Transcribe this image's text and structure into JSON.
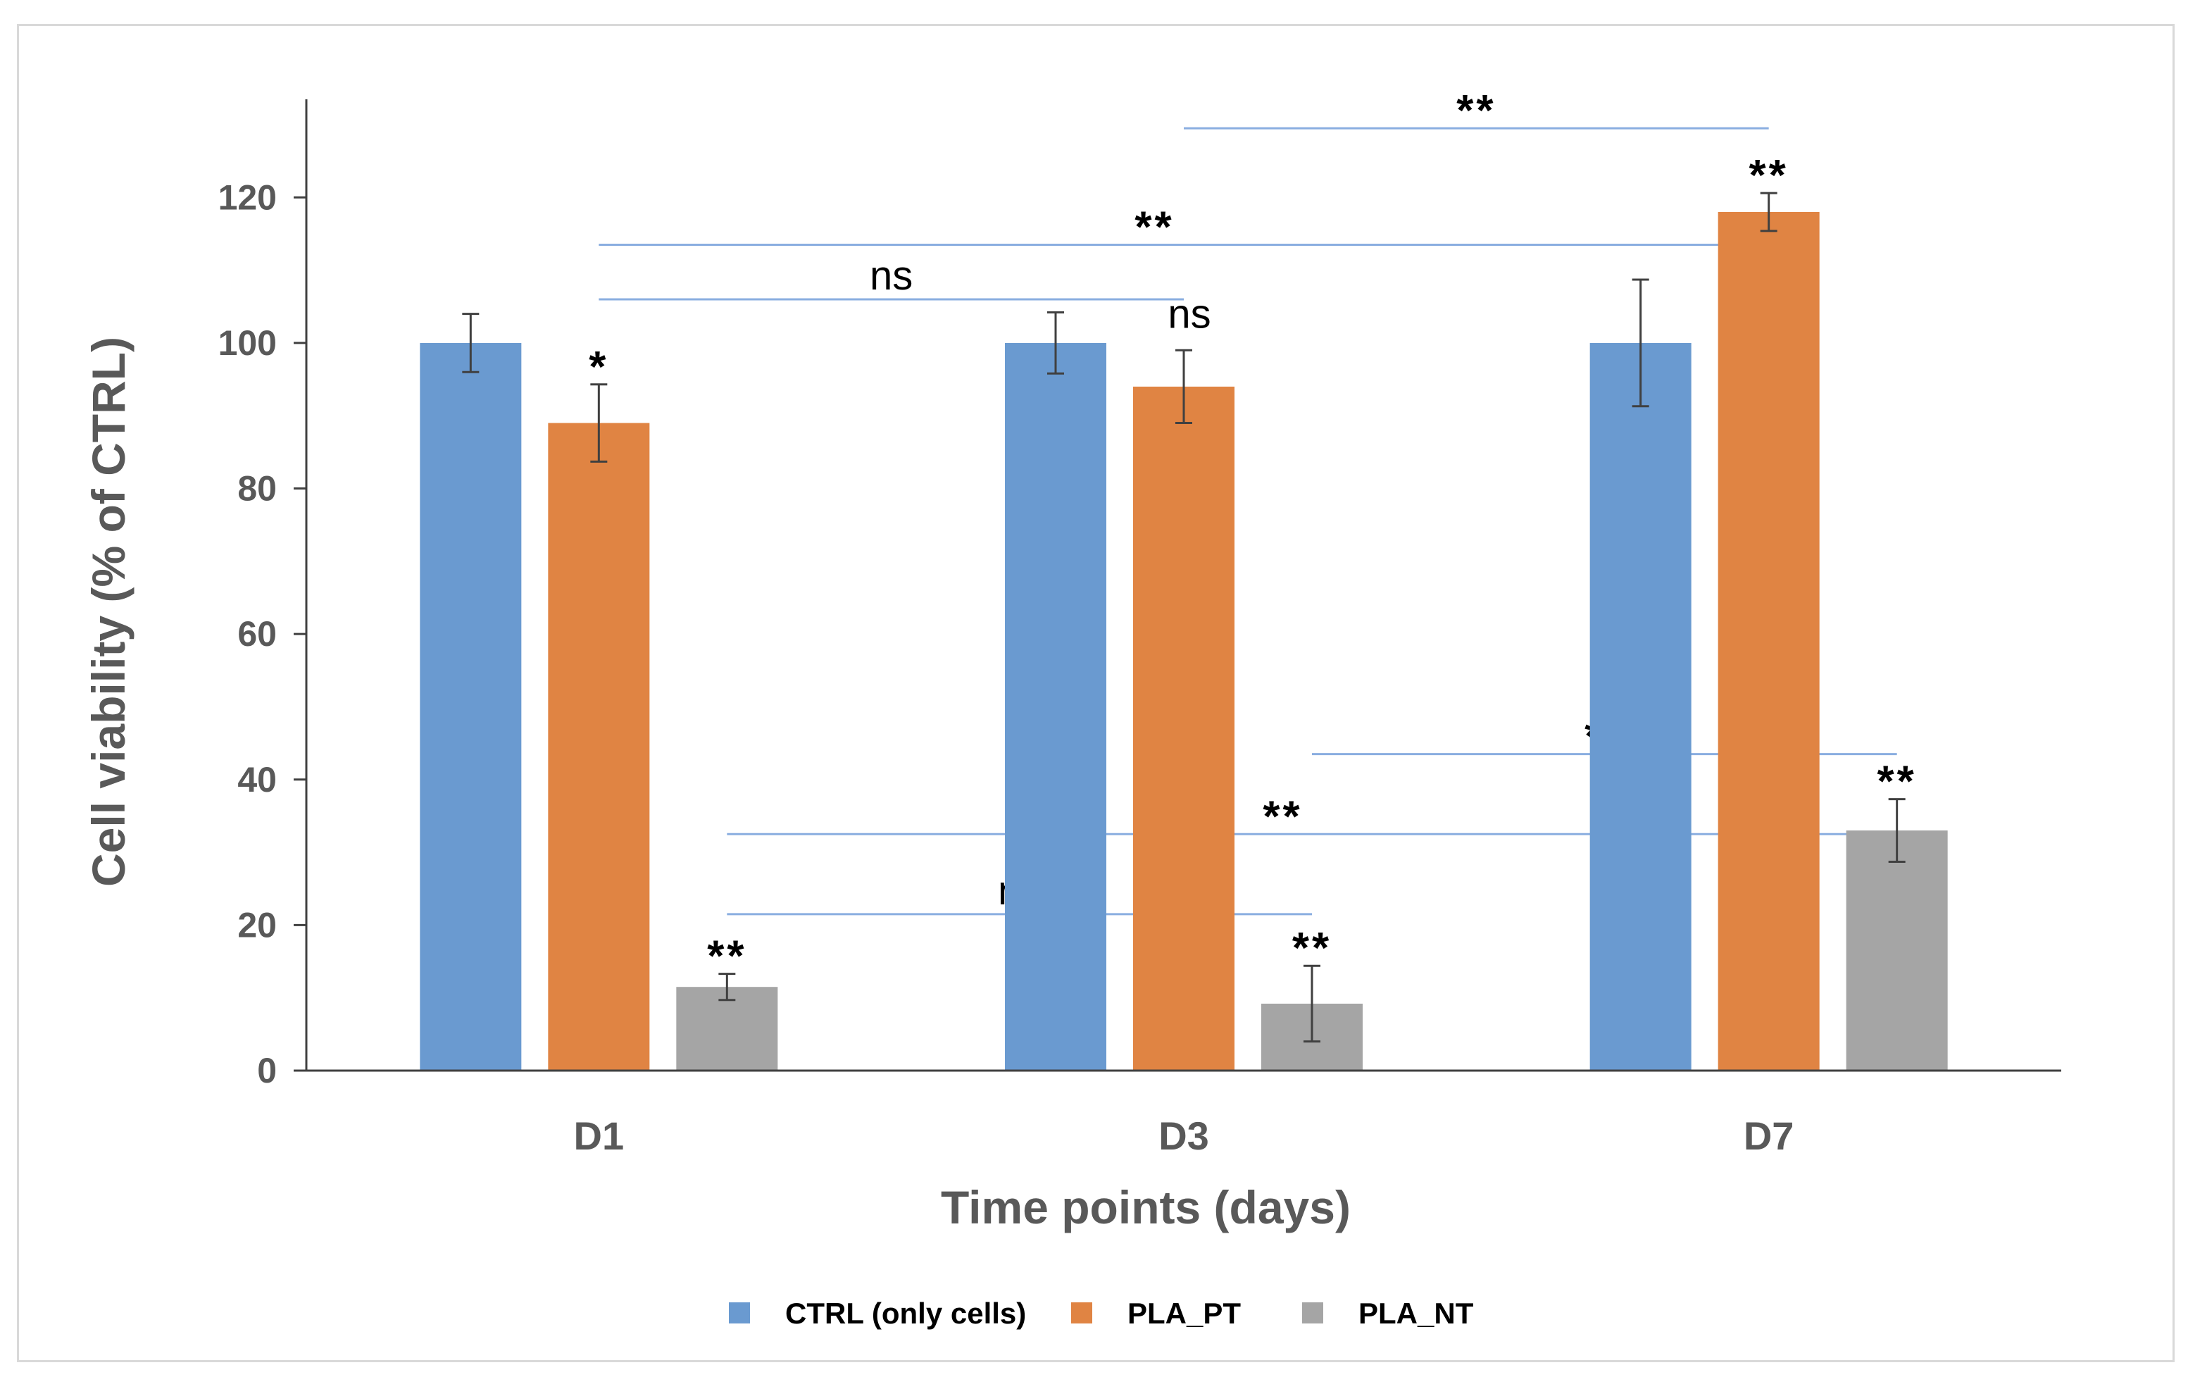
{
  "chart_data": {
    "type": "bar",
    "title": "",
    "xlabel": "Time points (days)",
    "ylabel": "Cell viability (% of CTRL)",
    "ylim": [
      0,
      130
    ],
    "yticks": [
      0,
      20,
      40,
      60,
      80,
      100,
      120
    ],
    "grid": false,
    "legend_position": "bottom",
    "categories": [
      "D1",
      "D3",
      "D7"
    ],
    "series": [
      {
        "name": "CTRL (only cells)",
        "color": "#6a9ad0",
        "values": [
          100,
          100,
          100
        ],
        "errors": [
          4,
          4.2,
          8.7
        ],
        "annotations": [
          "",
          "",
          ""
        ]
      },
      {
        "name": "PLA_PT",
        "color": "#e08443",
        "values": [
          89,
          94,
          118
        ],
        "errors": [
          5.3,
          5,
          2.6
        ],
        "annotations": [
          "*",
          "ns",
          "**"
        ]
      },
      {
        "name": "PLA_NT",
        "color": "#a5a5a5",
        "values": [
          11.5,
          9.2,
          33
        ],
        "errors": [
          1.8,
          5.2,
          4.3
        ],
        "annotations": [
          "**",
          "**",
          "**"
        ]
      }
    ],
    "comparisons": [
      {
        "from": {
          "category": 0,
          "series": 1
        },
        "to": {
          "category": 1,
          "series": 1
        },
        "y": 106,
        "label": "ns",
        "label_at": 0.5
      },
      {
        "from": {
          "category": 0,
          "series": 1
        },
        "to": {
          "category": 2,
          "series": 1
        },
        "y": 113.5,
        "label": "**",
        "label_at": 0.475
      },
      {
        "from": {
          "category": 1,
          "series": 1
        },
        "to": {
          "category": 2,
          "series": 1
        },
        "y": 129.5,
        "label": "**",
        "label_at": 0.5
      },
      {
        "from": {
          "category": 0,
          "series": 2
        },
        "to": {
          "category": 1,
          "series": 2
        },
        "y": 21.5,
        "label": "ns",
        "label_at": 0.5
      },
      {
        "from": {
          "category": 0,
          "series": 2
        },
        "to": {
          "category": 2,
          "series": 2
        },
        "y": 32.5,
        "label": "**",
        "label_at": 0.475
      },
      {
        "from": {
          "category": 1,
          "series": 2
        },
        "to": {
          "category": 2,
          "series": 2
        },
        "y": 43.5,
        "label": "**",
        "label_at": 0.5
      }
    ],
    "colors": {
      "axis": "#404040",
      "error_bar": "#404040",
      "comparison_line": "#8aaee0",
      "text": "#595959"
    }
  }
}
